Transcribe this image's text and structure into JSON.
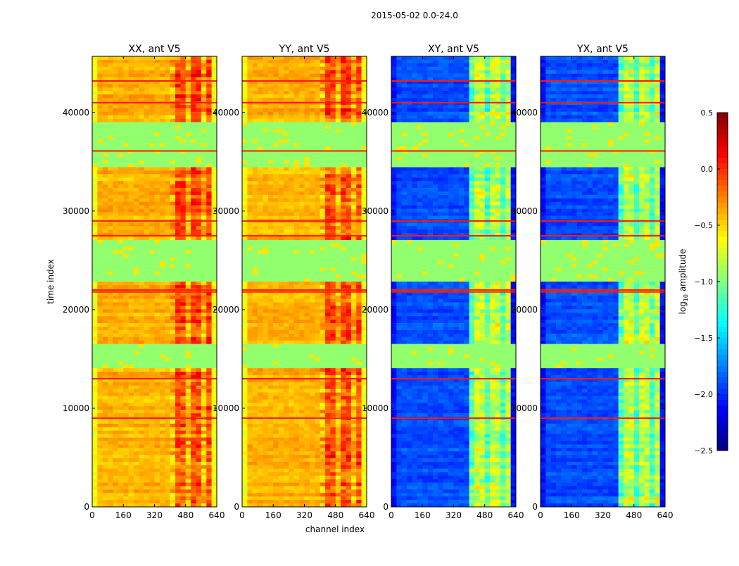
{
  "chart_data": {
    "type": "heatmap",
    "title": "2015-05-02 0.0-24.0",
    "xlabel": "channel index",
    "ylabel": "time index",
    "xlim": [
      0,
      640
    ],
    "ylim": [
      0,
      45700
    ],
    "xticks": [
      "0",
      "160",
      "320",
      "480",
      "640"
    ],
    "xtick_values": [
      0,
      160,
      320,
      480,
      640
    ],
    "yticks": [
      "0",
      "10000",
      "20000",
      "30000",
      "40000"
    ],
    "ytick_values": [
      0,
      10000,
      20000,
      30000,
      40000
    ],
    "colorbar": {
      "label": "log10 amplitude",
      "label_main": "log",
      "label_sub": "10",
      "label_rest": " amplitude",
      "range": [
        -2.5,
        0.5
      ],
      "ticks": [
        "0.5",
        "0.0",
        "−0.5",
        "−1.0",
        "−1.5",
        "−2.0",
        "−2.5"
      ],
      "tick_values": [
        0.5,
        0.0,
        -0.5,
        -1.0,
        -1.5,
        -2.0,
        -2.5
      ],
      "colormap": "jet"
    },
    "panels": [
      {
        "title": "XX, ant V5",
        "base_low_channels": -0.4,
        "base_mid_channels": -0.1,
        "edge_value": -0.75
      },
      {
        "title": "YY, ant V5",
        "base_low_channels": -0.4,
        "base_mid_channels": -0.1,
        "edge_value": -0.75
      },
      {
        "title": "XY, ant V5",
        "base_low_channels": -1.9,
        "base_mid_channels": -0.8,
        "edge_value": -2.2
      },
      {
        "title": "YX, ant V5",
        "base_low_channels": -1.9,
        "base_mid_channels": -0.8,
        "edge_value": -2.2
      }
    ],
    "mid_channel_range": [
      400,
      600
    ],
    "flagged_bands_time": [
      [
        34500,
        39100
      ],
      [
        22900,
        27100
      ],
      [
        14200,
        16400
      ]
    ],
    "flagged_value": -0.95,
    "bright_rows_time": [
      43200,
      41000,
      36100,
      29000,
      27500,
      22000,
      21800,
      13000,
      9000
    ],
    "bright_value": 0.05
  }
}
